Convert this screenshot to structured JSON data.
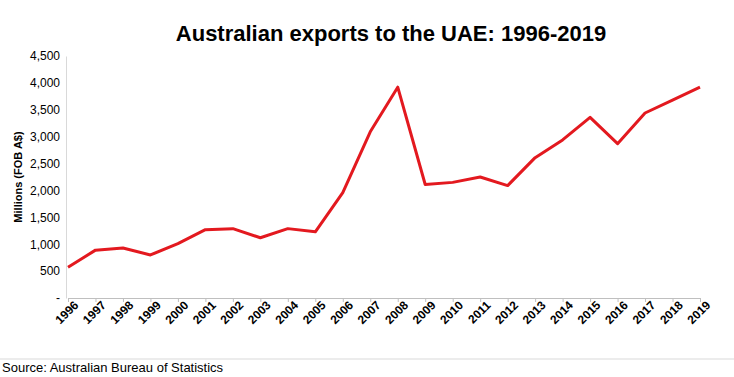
{
  "chart_data": {
    "type": "line",
    "title": "Australian exports to the UAE: 1996-2019",
    "y_label": "Millions (FOB A$)",
    "source": "Source: Australian Bureau of Statistics",
    "categories": [
      "1996",
      "1997",
      "1998",
      "1999",
      "2000",
      "2001",
      "2002",
      "2003",
      "2004",
      "2005",
      "2006",
      "2007",
      "2008",
      "2009",
      "2010",
      "2011",
      "2012",
      "2013",
      "2014",
      "2015",
      "2016",
      "2017",
      "2018",
      "2019"
    ],
    "values": [
      570,
      890,
      930,
      800,
      1010,
      1270,
      1290,
      1120,
      1290,
      1230,
      1960,
      3090,
      3920,
      2110,
      2150,
      2250,
      2090,
      2610,
      2940,
      3360,
      2870,
      3440,
      3680,
      3920
    ],
    "color": "#e3191f",
    "ylim": [
      0,
      4500
    ],
    "yticks": [
      {
        "value": 0,
        "label": "-"
      },
      500,
      {
        "value": 1000,
        "label": "1,000"
      },
      {
        "value": 1500,
        "label": "1,500"
      },
      {
        "value": 2000,
        "label": "2,000"
      },
      {
        "value": 2500,
        "label": "2,500"
      },
      {
        "value": 3000,
        "label": "3,000"
      },
      {
        "value": 3500,
        "label": "3,500"
      },
      {
        "value": 4000,
        "label": "4,000"
      },
      {
        "value": 4500,
        "label": "4,500"
      }
    ],
    "grid": false
  }
}
